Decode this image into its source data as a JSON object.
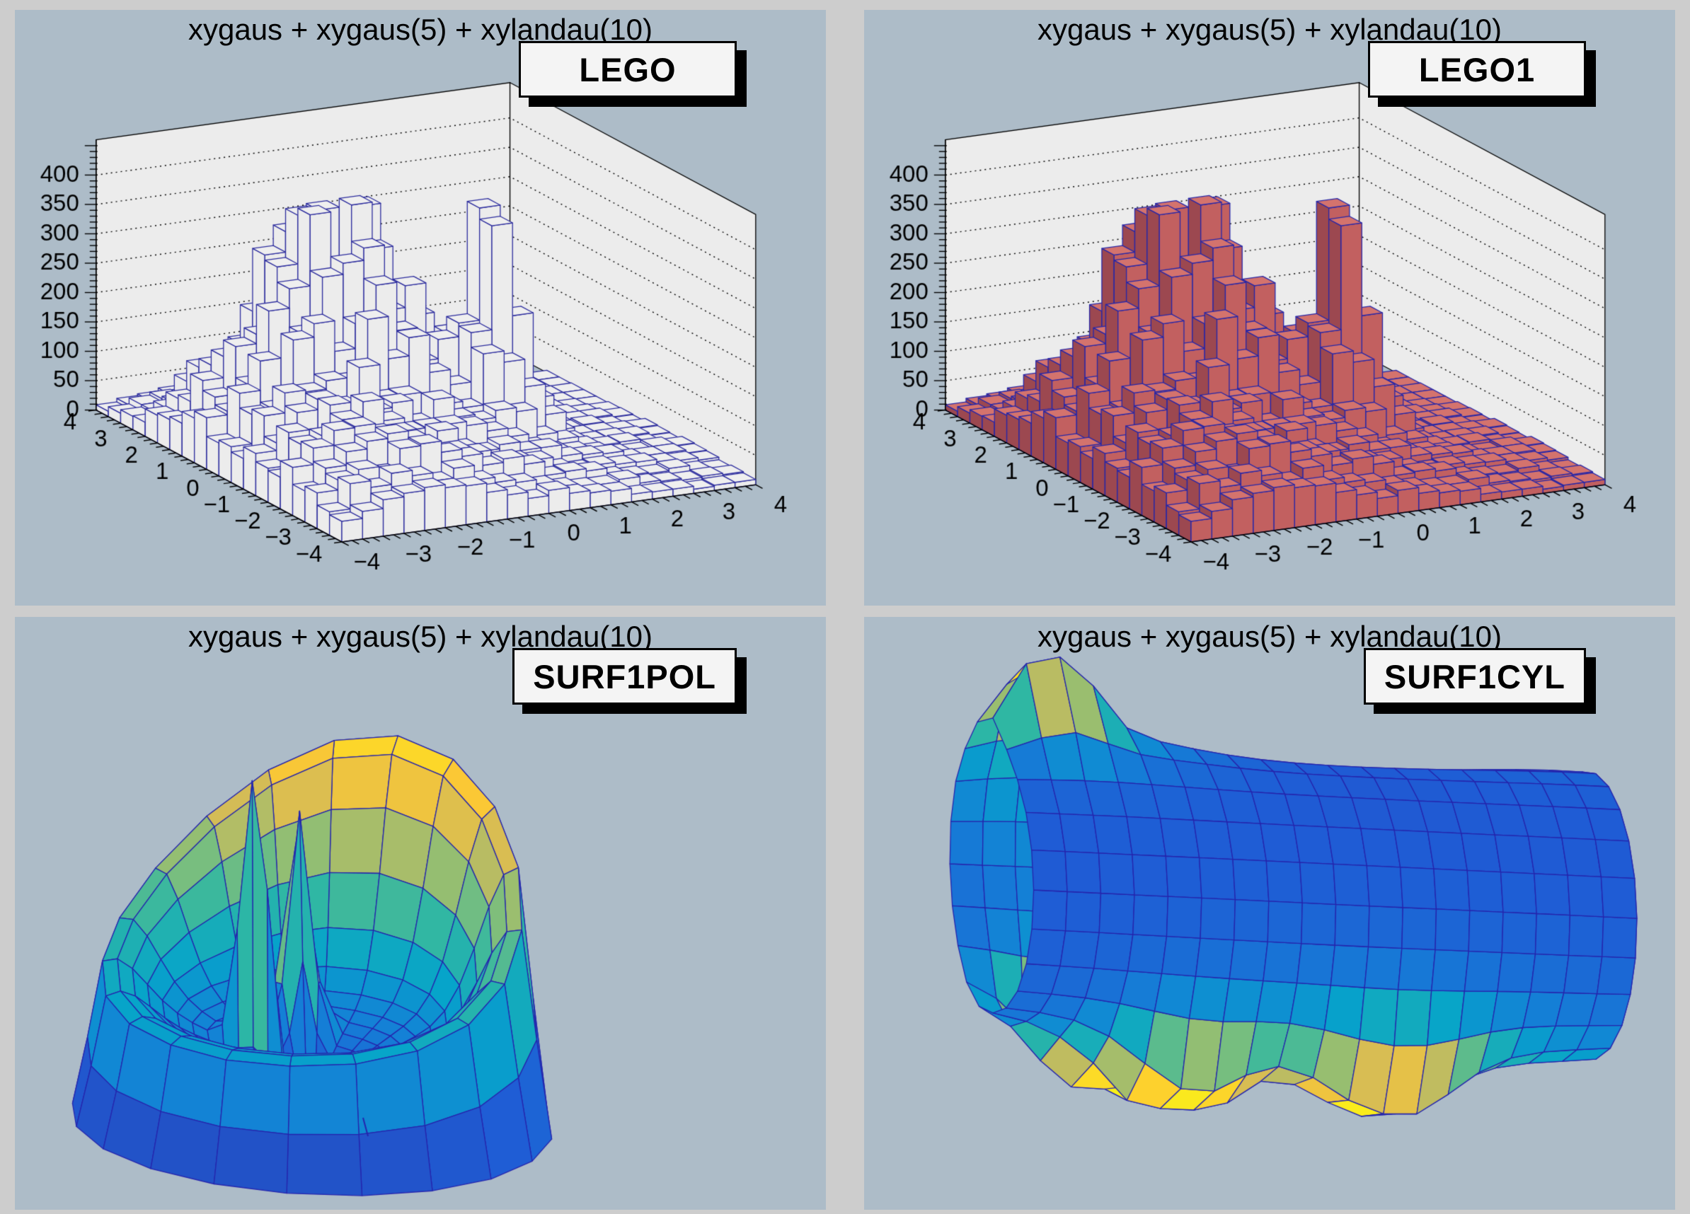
{
  "canvas": {
    "bg": "#cdcdcd",
    "pad_bg": "#adbcc8"
  },
  "pads": [
    {
      "title": "xygaus + xygaus(5) + xylandau(10)",
      "option_label": "LEGO"
    },
    {
      "title": "xygaus + xygaus(5) + xylandau(10)",
      "option_label": "LEGO1"
    },
    {
      "title": "xygaus + xygaus(5) + xylandau(10)",
      "option_label": "SURF1POL"
    },
    {
      "title": "xygaus + xygaus(5) + xylandau(10)",
      "option_label": "SURF1CYL"
    }
  ],
  "palette": [
    {
      "t": 0.0,
      "color": "#2c35a0"
    },
    {
      "t": 0.125,
      "color": "#1f5cd5"
    },
    {
      "t": 0.25,
      "color": "#1481d6"
    },
    {
      "t": 0.375,
      "color": "#06a4ca"
    },
    {
      "t": 0.5,
      "color": "#2eb7a4"
    },
    {
      "t": 0.625,
      "color": "#87bf77"
    },
    {
      "t": 0.75,
      "color": "#d1bb59"
    },
    {
      "t": 0.875,
      "color": "#fec932"
    },
    {
      "t": 1.0,
      "color": "#f9f119"
    }
  ],
  "chart_data": [
    {
      "type": "bar",
      "variant": "3d-lego",
      "draw_option": "LEGO",
      "title": "xygaus + xygaus(5) + xylandau(10)",
      "function": "xygaus + xygaus(5) + xylandau(10)",
      "x_range": [
        -4,
        4
      ],
      "y_range": [
        -4,
        4
      ],
      "z_range": [
        0,
        460
      ],
      "x_tick_values": [
        -4,
        -3,
        -2,
        -1,
        0,
        1,
        2,
        3,
        4
      ],
      "x_tick_labels": [
        "−4",
        "−3",
        "−2",
        "−1",
        "0",
        "1",
        "2",
        "3",
        "4"
      ],
      "y_tick_values": [
        -4,
        -3,
        -2,
        -1,
        0,
        1,
        2,
        3,
        4
      ],
      "y_tick_labels": [
        "−4",
        "−3",
        "−2",
        "−1",
        "0",
        "1",
        "2",
        "3",
        "4"
      ],
      "z_tick_values": [
        0,
        50,
        100,
        150,
        200,
        250,
        300,
        350,
        400
      ],
      "z_tick_labels": [
        "0",
        "50",
        "100",
        "150",
        "200",
        "250",
        "300",
        "350",
        "400"
      ],
      "bins": {
        "nx": 20,
        "ny": 20
      },
      "frame_bg": "#ececec",
      "grid_color": "#000000",
      "bar_fill": {
        "top": "#efefef",
        "front": "#ececec",
        "side": "#ececec"
      },
      "bar_line": "#2d2d9e",
      "components": [
        {
          "kind": "gaus2d",
          "amp": 335,
          "x0": -1.25,
          "y0": 0.9,
          "sx": 1.25,
          "sy": 1.15
        },
        {
          "kind": "gaus2d",
          "amp": 355,
          "x0": 1.05,
          "y0": -0.4,
          "sx": 0.42,
          "sy": 0.48
        },
        {
          "kind": "landau2d",
          "amp": 120,
          "x_mpv": -2.4,
          "y_mpv": -2.2,
          "cx": 1.15,
          "cy": 1.25
        }
      ],
      "noise": {
        "lo": 0.72,
        "hi": 1.22
      }
    },
    {
      "type": "bar",
      "variant": "3d-lego",
      "draw_option": "LEGO1",
      "title": "xygaus + xygaus(5) + xylandau(10)",
      "function": "xygaus + xygaus(5) + xylandau(10)",
      "x_range": [
        -4,
        4
      ],
      "y_range": [
        -4,
        4
      ],
      "z_range": [
        0,
        460
      ],
      "x_tick_values": [
        -4,
        -3,
        -2,
        -1,
        0,
        1,
        2,
        3,
        4
      ],
      "x_tick_labels": [
        "−4",
        "−3",
        "−2",
        "−1",
        "0",
        "1",
        "2",
        "3",
        "4"
      ],
      "y_tick_values": [
        -4,
        -3,
        -2,
        -1,
        0,
        1,
        2,
        3,
        4
      ],
      "y_tick_labels": [
        "−4",
        "−3",
        "−2",
        "−1",
        "0",
        "1",
        "2",
        "3",
        "4"
      ],
      "z_tick_values": [
        0,
        50,
        100,
        150,
        200,
        250,
        300,
        350,
        400
      ],
      "z_tick_labels": [
        "0",
        "50",
        "100",
        "150",
        "200",
        "250",
        "300",
        "350",
        "400"
      ],
      "bins": {
        "nx": 20,
        "ny": 20
      },
      "frame_bg": "#ececec",
      "grid_color": "#000000",
      "bar_fill": {
        "top": "#d4736d",
        "front": "#c26060",
        "side": "#9c4850"
      },
      "bar_line": "#2626a8",
      "components": [
        {
          "kind": "gaus2d",
          "amp": 335,
          "x0": -1.25,
          "y0": 0.9,
          "sx": 1.25,
          "sy": 1.15
        },
        {
          "kind": "gaus2d",
          "amp": 355,
          "x0": 1.05,
          "y0": -0.4,
          "sx": 0.42,
          "sy": 0.48
        },
        {
          "kind": "landau2d",
          "amp": 120,
          "x_mpv": -2.4,
          "y_mpv": -2.2,
          "cx": 1.15,
          "cy": 1.25
        }
      ],
      "noise": {
        "lo": 0.72,
        "hi": 1.22
      }
    },
    {
      "type": "area",
      "variant": "3d-surface-polar",
      "draw_option": "SURF1POL",
      "title": "xygaus + xygaus(5) + xylandau(10)",
      "function": "xygaus + xygaus(5) + xylandau(10)",
      "z_range": [
        0,
        460
      ],
      "color_max": 430,
      "base": 22,
      "mesh_color": "#2525ad",
      "grid": {
        "n_phi": 20,
        "n_r": 16
      },
      "components": [
        {
          "amp": 85,
          "r0": 0.5,
          "sr": 0.3,
          "phi0": 0,
          "sphi": 100000
        },
        {
          "amp": 85,
          "r0": 0.86,
          "sr": 0.17,
          "phi0": 0,
          "sphi": 100000
        },
        {
          "amp": 265,
          "r0": 0.88,
          "sr": 0.15,
          "phi0": 35,
          "sphi": 55
        },
        {
          "amp": 430,
          "r0": 0.24,
          "sr": 0.055,
          "phi0": 137,
          "sphi": 10
        },
        {
          "amp": 295,
          "r0": 0.27,
          "sr": 0.06,
          "phi0": 72,
          "sphi": 11
        }
      ]
    },
    {
      "type": "area",
      "variant": "3d-surface-cylindrical",
      "draw_option": "SURF1CYL",
      "title": "xygaus + xygaus(5) + xylandau(10)",
      "function": "xygaus + xygaus(5) + xylandau(10)",
      "z_range": [
        0,
        460
      ],
      "color_max": 430,
      "base": 50,
      "mesh_color": "#2525ad",
      "grid": {
        "n_angle": 20,
        "n_axial": 18
      },
      "components": [
        {
          "amp": 430,
          "s0": 0.1,
          "ss": 0.055,
          "t0": 95,
          "st": 13
        },
        {
          "amp": 330,
          "s0": 0.16,
          "ss": 0.07,
          "t0": 243,
          "st": 14
        },
        {
          "amp": 400,
          "s0": 0.3,
          "ss": 0.08,
          "t0": 272,
          "st": 17
        },
        {
          "amp": 320,
          "s0": 0.63,
          "ss": 0.1,
          "t0": 282,
          "st": 17
        },
        {
          "amp": 165,
          "s0": 0.52,
          "ss": 0.3,
          "t0": 250,
          "st": 48
        },
        {
          "amp": 140,
          "s0": 0.15,
          "ss": 0.15,
          "t0": 120,
          "st": 35
        },
        {
          "amp": 160,
          "s0": 0.97,
          "ss": 0.16,
          "t0": 200,
          "st": 55
        }
      ]
    }
  ]
}
